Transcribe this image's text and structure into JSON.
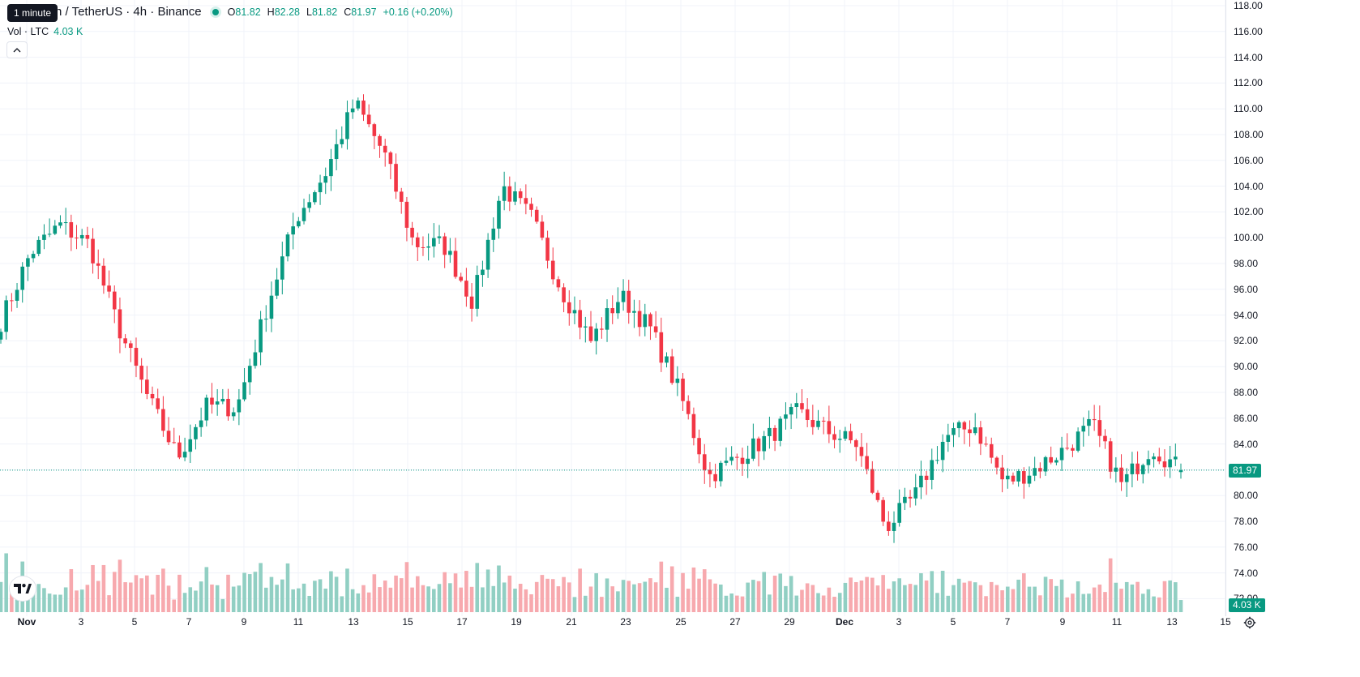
{
  "tooltip": {
    "label": "1 minute"
  },
  "legend": {
    "title": "n / TetherUS · 4h · Binance",
    "ohlc": {
      "o_key": "O",
      "o": "81.82",
      "h_key": "H",
      "h": "82.28",
      "l_key": "L",
      "l": "81.82",
      "c_key": "C",
      "c": "81.97",
      "change": "+0.16 (+0.20%)"
    },
    "volume_label": "Vol · LTC",
    "volume_value": "4.03 K"
  },
  "price_axis": {
    "labels": [
      "118.00",
      "116.00",
      "114.00",
      "112.00",
      "110.00",
      "108.00",
      "106.00",
      "104.00",
      "102.00",
      "100.00",
      "98.00",
      "96.00",
      "94.00",
      "92.00",
      "90.00",
      "88.00",
      "86.00",
      "84.00",
      "82.00",
      "80.00",
      "78.00",
      "76.00",
      "74.00",
      "72.00"
    ],
    "last_price": "81.97",
    "last_volume": "4.03 K"
  },
  "time_axis": {
    "labels": [
      {
        "text": "Nov",
        "bold": true
      },
      {
        "text": "3"
      },
      {
        "text": "5"
      },
      {
        "text": "7"
      },
      {
        "text": "9"
      },
      {
        "text": "11"
      },
      {
        "text": "13"
      },
      {
        "text": "15"
      },
      {
        "text": "17"
      },
      {
        "text": "19"
      },
      {
        "text": "21"
      },
      {
        "text": "23"
      },
      {
        "text": "25"
      },
      {
        "text": "27"
      },
      {
        "text": "29"
      },
      {
        "text": "Dec",
        "bold": true
      },
      {
        "text": "3"
      },
      {
        "text": "5"
      },
      {
        "text": "7"
      },
      {
        "text": "9"
      },
      {
        "text": "11"
      },
      {
        "text": "13"
      },
      {
        "text": "15"
      }
    ]
  },
  "colors": {
    "up": "#089981",
    "down": "#f23645",
    "up_vol": "#91cfc3",
    "down_vol": "#f7a9ae",
    "grid": "#f0f3fa"
  },
  "icons": {
    "logo": "tradingview-logo-icon",
    "settings": "gear-icon",
    "collapse": "chevron-up-icon"
  },
  "chart_data": {
    "type": "candlestick",
    "pair": "LTC / TetherUS",
    "interval": "4h",
    "exchange": "Binance",
    "ylim": [
      71.5,
      118.5
    ],
    "close_path": [
      {
        "date": "Oct 31",
        "close": 93.5
      },
      {
        "date": "Nov 1",
        "close": 98.8
      },
      {
        "date": "Nov 2",
        "close": 101.0
      },
      {
        "date": "Nov 3",
        "close": 99.5
      },
      {
        "date": "Nov 3 ",
        "close": 93.0
      },
      {
        "date": "Nov 4",
        "close": 87.5
      },
      {
        "date": "Nov 5",
        "close": 83.0
      },
      {
        "date": "Nov 6",
        "close": 87.0
      },
      {
        "date": "Nov 7",
        "close": 86.8
      },
      {
        "date": "Nov 8",
        "close": 94.5
      },
      {
        "date": "Nov 8 ",
        "close": 101.5
      },
      {
        "date": "Nov 9",
        "close": 105.0
      },
      {
        "date": "Nov 10",
        "close": 110.5
      },
      {
        "date": "Nov 11",
        "close": 106.5
      },
      {
        "date": "Nov 12",
        "close": 99.5
      },
      {
        "date": "Nov 13",
        "close": 99.5
      },
      {
        "date": "Nov 14",
        "close": 95.0
      },
      {
        "date": "Nov 15",
        "close": 104.0
      },
      {
        "date": "Nov 16",
        "close": 101.5
      },
      {
        "date": "Nov 17",
        "close": 96.0
      },
      {
        "date": "Nov 18",
        "close": 92.0
      },
      {
        "date": "Nov 19",
        "close": 95.5
      },
      {
        "date": "Nov 20",
        "close": 93.0
      },
      {
        "date": "Nov 21",
        "close": 88.0
      },
      {
        "date": "Nov 22",
        "close": 81.5
      },
      {
        "date": "Nov 23",
        "close": 83.0
      },
      {
        "date": "Nov 25",
        "close": 84.5
      },
      {
        "date": "Nov 27",
        "close": 86.5
      },
      {
        "date": "Nov 28",
        "close": 85.0
      },
      {
        "date": "Nov 30",
        "close": 84.0
      },
      {
        "date": "Dec 1",
        "close": 77.5
      },
      {
        "date": "Dec 2",
        "close": 80.0
      },
      {
        "date": "Dec 3",
        "close": 84.5
      },
      {
        "date": "Dec 4",
        "close": 85.5
      },
      {
        "date": "Dec 6",
        "close": 81.0
      },
      {
        "date": "Dec 8",
        "close": 82.0
      },
      {
        "date": "Dec 9",
        "close": 83.5
      },
      {
        "date": "Dec 10",
        "close": 85.5
      },
      {
        "date": "Dec 11",
        "close": 80.8
      },
      {
        "date": "Dec 12",
        "close": 83.8
      },
      {
        "date": "Dec 13",
        "close": 81.97
      }
    ],
    "last_candle": {
      "open": 81.82,
      "high": 82.28,
      "low": 81.82,
      "close": 81.97,
      "volume": "4.03 K"
    }
  }
}
